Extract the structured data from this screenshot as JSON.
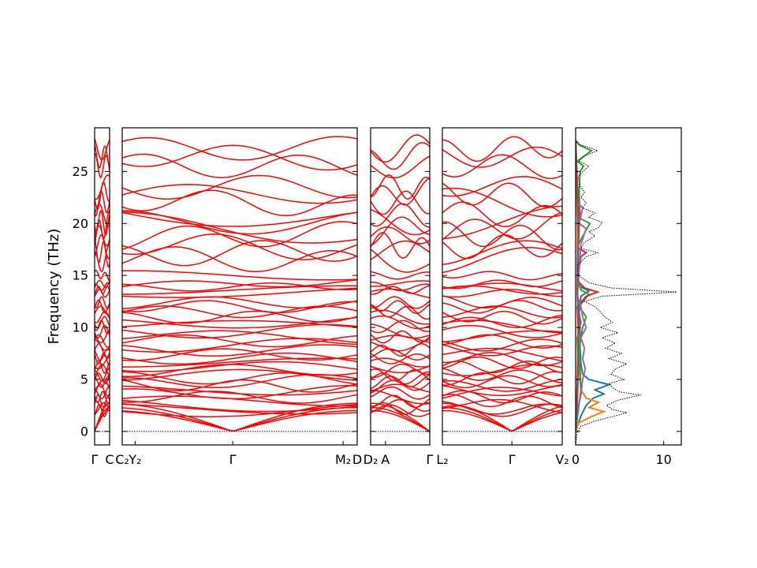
{
  "chart_data": {
    "type": "line",
    "ylabel": "Frequency (THz)",
    "ylim": [
      -1.3,
      29.2
    ],
    "y_ticks": [
      0,
      5,
      10,
      15,
      20,
      25
    ],
    "line_color": "#ff0000",
    "zero_line_color": "#0000cc",
    "band_panels": [
      {
        "start_label": "Γ",
        "end_label": "C",
        "ticks": [
          {
            "label": "Γ",
            "pos": 0
          },
          {
            "label": "C",
            "pos": 1
          }
        ]
      },
      {
        "start_label": "C₂",
        "end_label": "M₂",
        "ticks": [
          {
            "label": "C₂",
            "pos": 0
          },
          {
            "label": "Y₂",
            "pos": 0.055
          },
          {
            "label": "Γ",
            "pos": 0.47
          },
          {
            "label": "M₂",
            "pos": 0.94
          },
          {
            "label": "D",
            "pos": 1
          }
        ]
      },
      {
        "start_label": "D₂",
        "end_label": "Γ",
        "ticks": [
          {
            "label": "D₂",
            "pos": 0
          },
          {
            "label": "A",
            "pos": 0.25
          },
          {
            "label": "Γ",
            "pos": 1
          }
        ]
      },
      {
        "start_label": "L₂",
        "end_label": "V₂",
        "ticks": [
          {
            "label": "L₂",
            "pos": 0
          },
          {
            "label": "Γ",
            "pos": 0.58
          },
          {
            "label": "V₂",
            "pos": 1
          }
        ]
      }
    ],
    "band_groups": [
      {
        "range": "acoustic",
        "values": [
          0,
          0,
          0
        ]
      },
      {
        "range": "low",
        "values": [
          2.0,
          2.2,
          2.5,
          2.9,
          3.3,
          3.7,
          4.0,
          4.4,
          4.8,
          5.1,
          5.4,
          5.9,
          6.2,
          6.6,
          7.0,
          7.4
        ]
      },
      {
        "range": "mid",
        "values": [
          7.8,
          8.3,
          8.7,
          9.1,
          9.6,
          10.1,
          10.5,
          11.0,
          11.5,
          12.0,
          12.4
        ]
      },
      {
        "range": "dense",
        "values": [
          13.3,
          13.6,
          13.9,
          14.2,
          15.0
        ]
      },
      {
        "range": "high",
        "values": [
          16.5,
          17.2,
          17.8,
          18.8,
          19.5,
          20.1,
          20.8,
          22.0,
          22.8,
          23.5,
          25.5,
          26.4,
          27.2
        ]
      }
    ],
    "dos": {
      "xlim": [
        0,
        12
      ],
      "x_ticks": [
        0,
        10
      ],
      "total": {
        "color": "#000000",
        "style": "dotted",
        "points": [
          [
            -1.3,
            0
          ],
          [
            0,
            0.2
          ],
          [
            0.5,
            0.6
          ],
          [
            1.0,
            2.2
          ],
          [
            1.5,
            4.5
          ],
          [
            1.8,
            5.8
          ],
          [
            2.1,
            4.2
          ],
          [
            2.5,
            3.5
          ],
          [
            3.0,
            4.8
          ],
          [
            3.5,
            7.4
          ],
          [
            3.8,
            5.0
          ],
          [
            4.2,
            4.2
          ],
          [
            4.6,
            3.8
          ],
          [
            5.0,
            5.5
          ],
          [
            5.5,
            4.0
          ],
          [
            6.0,
            4.5
          ],
          [
            6.5,
            5.8
          ],
          [
            7.0,
            3.8
          ],
          [
            7.5,
            5.2
          ],
          [
            8.0,
            3.4
          ],
          [
            8.5,
            4.5
          ],
          [
            9.0,
            3.0
          ],
          [
            9.5,
            4.8
          ],
          [
            10.0,
            2.8
          ],
          [
            10.5,
            4.2
          ],
          [
            11.0,
            3.3
          ],
          [
            11.5,
            2.8
          ],
          [
            12.0,
            2.2
          ],
          [
            12.5,
            1.0
          ],
          [
            13.0,
            3.0
          ],
          [
            13.4,
            11.5
          ],
          [
            13.8,
            4.0
          ],
          [
            14.3,
            1.5
          ],
          [
            15.0,
            0.3
          ],
          [
            16.0,
            0.2
          ],
          [
            16.8,
            1.2
          ],
          [
            17.2,
            2.5
          ],
          [
            17.6,
            0.6
          ],
          [
            18.2,
            1.0
          ],
          [
            18.8,
            2.2
          ],
          [
            19.2,
            1.5
          ],
          [
            19.6,
            2.6
          ],
          [
            20.1,
            3.0
          ],
          [
            20.6,
            1.5
          ],
          [
            21.0,
            2.2
          ],
          [
            21.5,
            0.8
          ],
          [
            22.0,
            1.2
          ],
          [
            22.5,
            0.6
          ],
          [
            23.0,
            1.0
          ],
          [
            23.6,
            0.5
          ],
          [
            24.5,
            0.3
          ],
          [
            25.0,
            0.8
          ],
          [
            25.5,
            1.5
          ],
          [
            26.0,
            0.4
          ],
          [
            26.5,
            1.0
          ],
          [
            27.0,
            2.5
          ],
          [
            27.4,
            1.2
          ],
          [
            27.6,
            0.3
          ],
          [
            28.0,
            0
          ]
        ]
      },
      "projections": [
        {
          "color": "#1f77b4",
          "points": [
            [
              0,
              0
            ],
            [
              1.5,
              0.6
            ],
            [
              2.5,
              1.2
            ],
            [
              3.2,
              2.0
            ],
            [
              3.6,
              3.2
            ],
            [
              4.0,
              2.2
            ],
            [
              4.5,
              3.8
            ],
            [
              5.0,
              1.5
            ],
            [
              5.5,
              0.8
            ],
            [
              6.5,
              0.6
            ],
            [
              8.0,
              0.5
            ],
            [
              10.0,
              0.5
            ],
            [
              11.5,
              0.4
            ],
            [
              13.0,
              0.6
            ],
            [
              13.5,
              1.5
            ],
            [
              14.0,
              0.3
            ],
            [
              20.0,
              0.3
            ],
            [
              28.0,
              0
            ]
          ]
        },
        {
          "color": "#ff7f0e",
          "points": [
            [
              0,
              0
            ],
            [
              0.8,
              0.3
            ],
            [
              1.5,
              2.0
            ],
            [
              1.9,
              3.2
            ],
            [
              2.3,
              1.5
            ],
            [
              2.8,
              2.6
            ],
            [
              3.2,
              1.2
            ],
            [
              4.0,
              0.6
            ],
            [
              6.0,
              0.4
            ],
            [
              9.0,
              0.3
            ],
            [
              13.0,
              0.2
            ],
            [
              20.0,
              0.2
            ],
            [
              28.0,
              0
            ]
          ]
        },
        {
          "color": "#2ca02c",
          "points": [
            [
              0,
              0
            ],
            [
              2.0,
              0.3
            ],
            [
              4.0,
              0.6
            ],
            [
              6.0,
              0.5
            ],
            [
              8.0,
              0.4
            ],
            [
              10.0,
              0.8
            ],
            [
              11.0,
              1.2
            ],
            [
              12.0,
              0.4
            ],
            [
              13.2,
              1.5
            ],
            [
              13.6,
              0.6
            ],
            [
              15.0,
              0.2
            ],
            [
              18.0,
              0.3
            ],
            [
              20.0,
              1.6
            ],
            [
              20.5,
              0.5
            ],
            [
              23.0,
              0.4
            ],
            [
              25.0,
              0.5
            ],
            [
              25.5,
              0.9
            ],
            [
              26.0,
              0.2
            ],
            [
              27.0,
              1.8
            ],
            [
              27.5,
              0.5
            ],
            [
              28.0,
              0
            ]
          ]
        },
        {
          "color": "#d62728",
          "points": [
            [
              0,
              0
            ],
            [
              5.0,
              0.2
            ],
            [
              10.0,
              0.3
            ],
            [
              12.0,
              0.2
            ],
            [
              13.0,
              1.2
            ],
            [
              13.4,
              2.5
            ],
            [
              13.8,
              1.0
            ],
            [
              14.5,
              0.2
            ],
            [
              16.8,
              0.6
            ],
            [
              17.2,
              1.2
            ],
            [
              17.6,
              0.3
            ],
            [
              20.0,
              0.4
            ],
            [
              24.0,
              0.2
            ],
            [
              28.0,
              0
            ]
          ]
        },
        {
          "color": "#9467bd",
          "points": [
            [
              0,
              0
            ],
            [
              2.0,
              0.2
            ],
            [
              3.5,
              0.6
            ],
            [
              5.0,
              0.8
            ],
            [
              6.0,
              1.1
            ],
            [
              7.0,
              0.8
            ],
            [
              8.0,
              1.0
            ],
            [
              9.0,
              0.6
            ],
            [
              10.0,
              1.2
            ],
            [
              11.0,
              0.8
            ],
            [
              12.0,
              0.6
            ],
            [
              13.0,
              0.2
            ],
            [
              18.0,
              0.6
            ],
            [
              19.5,
              1.2
            ],
            [
              20.0,
              0.4
            ],
            [
              21.5,
              0.8
            ],
            [
              22.0,
              0.2
            ],
            [
              28.0,
              0
            ]
          ]
        },
        {
          "color": "#8c564b",
          "points": [
            [
              0,
              0
            ],
            [
              3.0,
              0.2
            ],
            [
              6.0,
              0.3
            ],
            [
              9.0,
              0.2
            ],
            [
              10.5,
              0.6
            ],
            [
              11.5,
              0.3
            ],
            [
              13.5,
              0.2
            ],
            [
              19.0,
              0.3
            ],
            [
              28.0,
              0
            ]
          ]
        }
      ]
    }
  }
}
